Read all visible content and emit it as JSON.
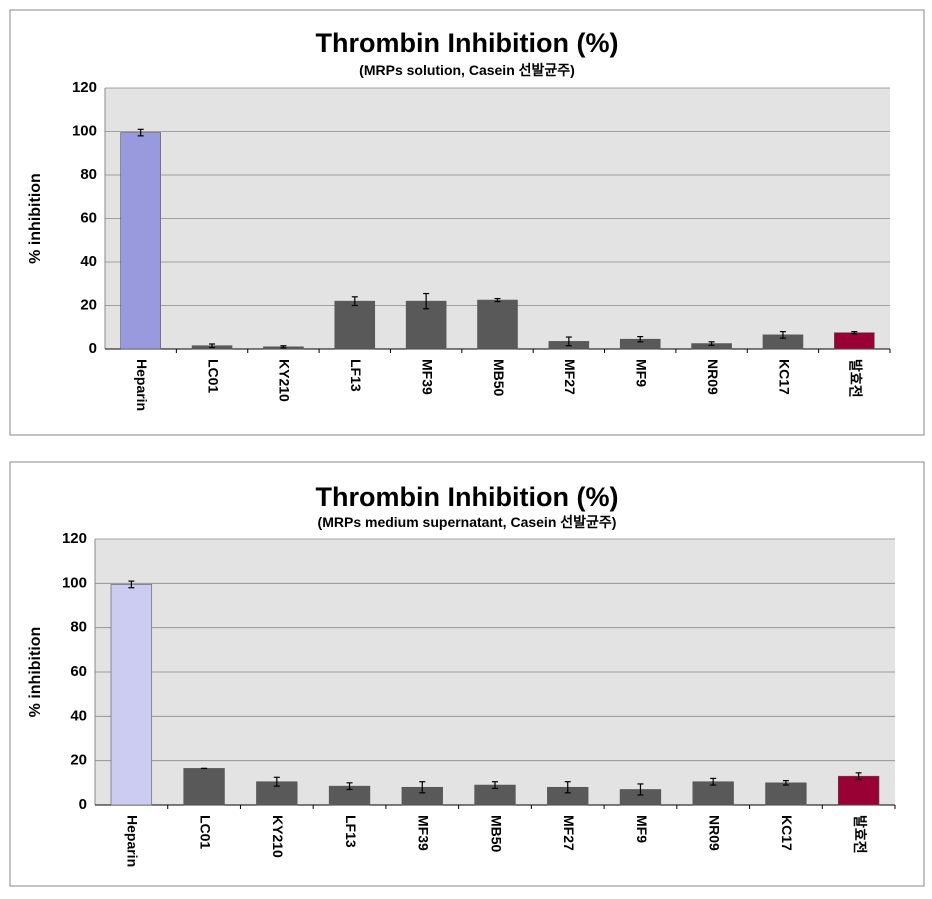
{
  "chart_data": [
    {
      "type": "bar",
      "title": "Thrombin Inhibition (%)",
      "subtitle": "(MRPs solution, Casein 선발균주)",
      "y_label": "% inhibition",
      "categories": [
        "Heparin",
        "LC01",
        "KY210",
        "LF13",
        "MF39",
        "MB50",
        "MF27",
        "MF9",
        "NR09",
        "KC17",
        "발효전"
      ],
      "values": [
        99.5,
        1.5,
        1,
        22,
        22,
        22.5,
        3.5,
        4.5,
        2.5,
        6.5,
        7.5
      ],
      "errors": [
        1.5,
        0.8,
        0.5,
        2,
        3.5,
        0.7,
        2,
        1.2,
        0.8,
        1.5,
        0.5
      ],
      "colors": [
        "#9999dd",
        "#595959",
        "#595959",
        "#595959",
        "#595959",
        "#595959",
        "#595959",
        "#595959",
        "#595959",
        "#595959",
        "#990033"
      ],
      "ylim": [
        0,
        120
      ],
      "yticks": [
        0,
        20,
        40,
        60,
        80,
        100,
        120
      ],
      "grid": true
    },
    {
      "type": "bar",
      "title": "Thrombin Inhibition (%)",
      "subtitle": "(MRPs  medium supernatant, Casein 선발균주)",
      "y_label": "% inhibition",
      "categories": [
        "Heparin",
        "LC01",
        "KY210",
        "LF13",
        "MF39",
        "MB50",
        "MF27",
        "MF9",
        "NR09",
        "KC17",
        "발효전"
      ],
      "values": [
        99.5,
        16.5,
        10.5,
        8.5,
        8,
        9,
        8,
        7,
        10.5,
        10,
        13
      ],
      "errors": [
        1.5,
        0,
        2,
        1.5,
        2.5,
        1.5,
        2.5,
        2.5,
        1.5,
        1,
        1.5
      ],
      "colors": [
        "#ccccf2",
        "#595959",
        "#595959",
        "#595959",
        "#595959",
        "#595959",
        "#595959",
        "#595959",
        "#595959",
        "#595959",
        "#990033"
      ],
      "ylim": [
        0,
        120
      ],
      "yticks": [
        0,
        20,
        40,
        60,
        80,
        100,
        120
      ],
      "grid": true
    }
  ]
}
